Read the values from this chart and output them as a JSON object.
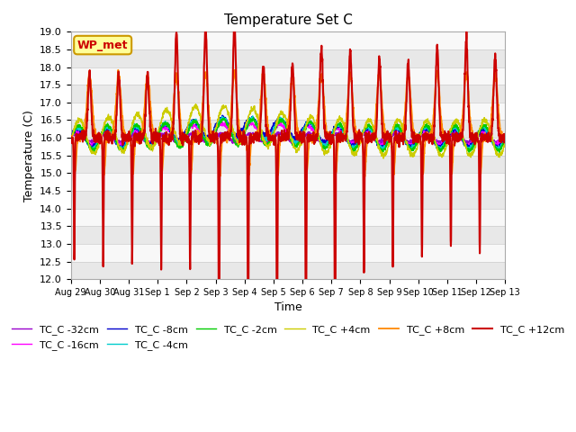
{
  "title": "Temperature Set C",
  "xlabel": "Time",
  "ylabel": "Temperature (C)",
  "ylim": [
    12.0,
    19.0
  ],
  "yticks": [
    12.0,
    12.5,
    13.0,
    13.5,
    14.0,
    14.5,
    15.0,
    15.5,
    16.0,
    16.5,
    17.0,
    17.5,
    18.0,
    18.5,
    19.0
  ],
  "xtick_labels": [
    "Aug 29",
    "Aug 30",
    "Aug 31",
    "Sep 1",
    "Sep 2",
    "Sep 3",
    "Sep 4",
    "Sep 5",
    "Sep 6",
    "Sep 7",
    "Sep 8",
    "Sep 9",
    "Sep 10",
    "Sep 11",
    "Sep 12",
    "Sep 13"
  ],
  "annotation_label": "WP_met",
  "annotation_bg": "#ffff99",
  "annotation_border": "#cc9900",
  "annotation_text_color": "#cc0000",
  "series_colors": {
    "TC_C -32cm": "#9900cc",
    "TC_C -16cm": "#ff00ff",
    "TC_C -8cm": "#0000cc",
    "TC_C -4cm": "#00cccc",
    "TC_C -2cm": "#00cc00",
    "TC_C +4cm": "#cccc00",
    "TC_C +8cm": "#ff8800",
    "TC_C +12cm": "#cc0000"
  },
  "background_color": "#ffffff",
  "grid_color": "#e0e0e0",
  "n_points": 2000,
  "n_days": 15
}
